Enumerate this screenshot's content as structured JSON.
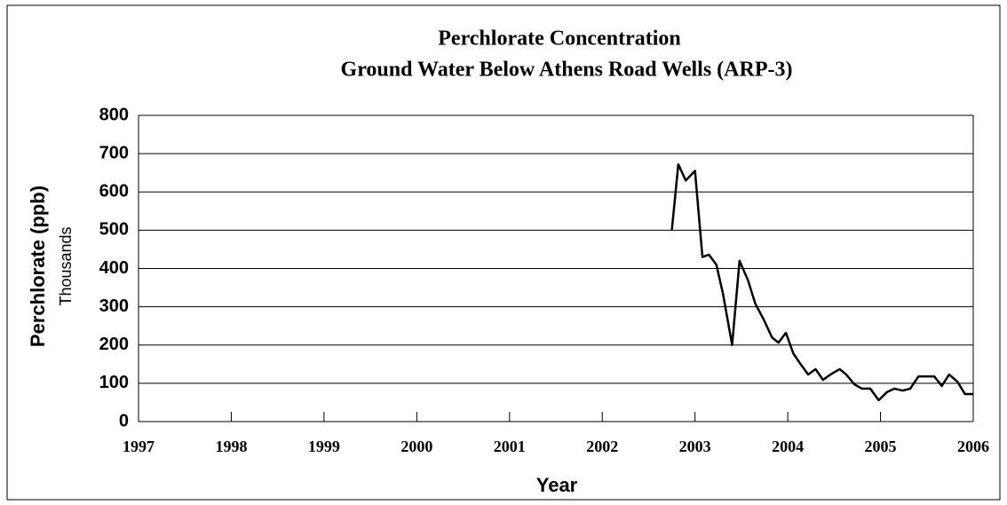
{
  "chart_data": {
    "type": "line",
    "title": "Perchlorate Concentration",
    "subtitle": "Ground Water Below Athens Road Wells (ARP-3)",
    "y_label": "Perchlorate  (ppb)",
    "y_unit_label": "Thousands",
    "x_label": "Year",
    "x": [
      2002.75,
      2002.82,
      2002.9,
      2003.0,
      2003.08,
      2003.15,
      2003.23,
      2003.3,
      2003.4,
      2003.48,
      2003.57,
      2003.65,
      2003.74,
      2003.83,
      2003.9,
      2003.98,
      2004.06,
      2004.15,
      2004.22,
      2004.3,
      2004.38,
      2004.46,
      2004.56,
      2004.63,
      2004.72,
      2004.8,
      2004.89,
      2004.98,
      2005.07,
      2005.15,
      2005.24,
      2005.32,
      2005.41,
      2005.5,
      2005.58,
      2005.66,
      2005.74,
      2005.83,
      2005.91,
      2006.0
    ],
    "series": [
      {
        "name": "ARP-3",
        "color": "#000000",
        "values": [
          500,
          672,
          630,
          655,
          430,
          436,
          410,
          336,
          200,
          420,
          370,
          308,
          267,
          220,
          206,
          232,
          178,
          146,
          123,
          137,
          109,
          123,
          137,
          123,
          97,
          86,
          86,
          56,
          77,
          86,
          81,
          86,
          118,
          118,
          118,
          93,
          123,
          104,
          72,
          72
        ]
      }
    ],
    "xlim": [
      1997,
      2006
    ],
    "xticks": [
      1997,
      1998,
      1999,
      2000,
      2001,
      2002,
      2003,
      2004,
      2005,
      2006
    ],
    "ylim": [
      0,
      800
    ],
    "yticks": [
      0,
      100,
      200,
      300,
      400,
      500,
      600,
      700,
      800
    ],
    "grid": true
  }
}
